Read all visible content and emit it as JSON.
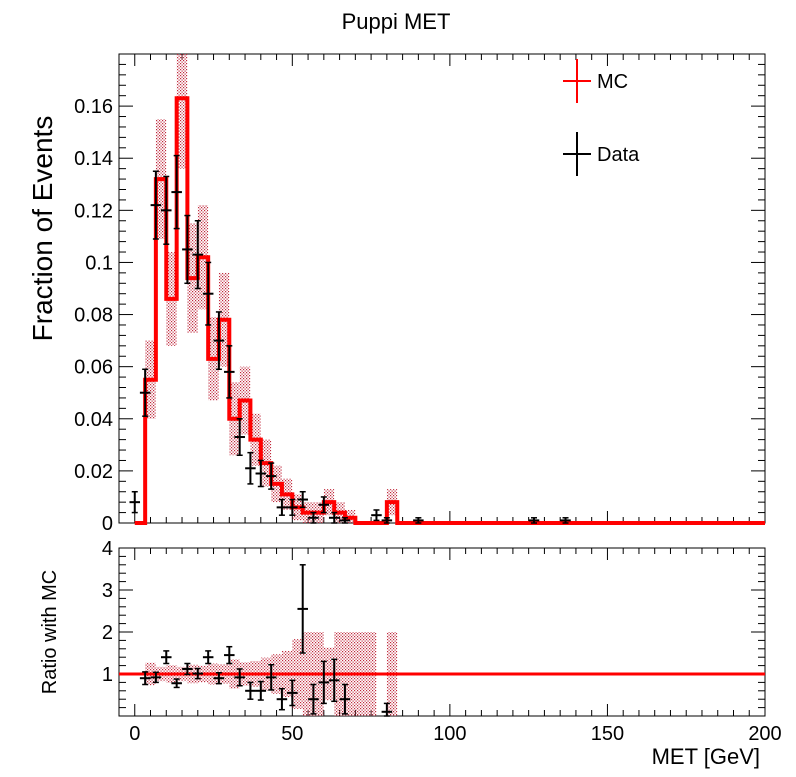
{
  "chart_data": [
    {
      "type": "line",
      "title": "Puppi MET",
      "ylabel": "Fraction of Events",
      "xlim": [
        -5,
        200
      ],
      "ylim": [
        0,
        0.18
      ],
      "y_ticks": [
        0,
        0.02,
        0.04,
        0.06,
        0.08,
        0.1,
        0.12,
        0.14,
        0.16
      ],
      "y_tick_labels": [
        "0",
        "0.02",
        "0.04",
        "0.06",
        "0.08",
        "0.1",
        "0.12",
        "0.14",
        "0.16"
      ],
      "grid": false,
      "legend_position": "top-right",
      "series": [
        {
          "name": "MC",
          "style": "histogram-step",
          "color": "#ff0000",
          "band_color": "#c0283c",
          "bin_edges": [
            0,
            3.3,
            6.7,
            10,
            13.3,
            16.7,
            20,
            23.3,
            26.7,
            30,
            33.3,
            36.7,
            40,
            43.3,
            46.7,
            50,
            53.3,
            56.7,
            60,
            63.3,
            66.7,
            70,
            73.3,
            76.7,
            80,
            83.3,
            200
          ],
          "values": [
            0.0,
            0.055,
            0.132,
            0.086,
            0.163,
            0.094,
            0.102,
            0.063,
            0.078,
            0.04,
            0.047,
            0.032,
            0.023,
            0.015,
            0.011,
            0.006,
            0.004,
            0.004,
            0.008,
            0.004,
            0.002,
            0.0,
            0.0,
            0.0,
            0.008,
            0.0
          ],
          "errors": [
            0.0,
            0.015,
            0.023,
            0.018,
            0.027,
            0.021,
            0.02,
            0.016,
            0.018,
            0.014,
            0.013,
            0.01,
            0.009,
            0.007,
            0.006,
            0.005,
            0.004,
            0.004,
            0.005,
            0.004,
            0.003,
            0.0,
            0.0,
            0.0,
            0.005,
            0.0
          ]
        },
        {
          "name": "Data",
          "style": "points-with-errors",
          "color": "#000000",
          "x": [
            0,
            3.3,
            6.7,
            10,
            13.3,
            16.7,
            20,
            23.3,
            26.7,
            30,
            33.3,
            36.7,
            40,
            43.3,
            46.7,
            50,
            53.3,
            56.7,
            60,
            63.3,
            66.7,
            76.7,
            80,
            90,
            126.7,
            136.7
          ],
          "y": [
            0.008,
            0.05,
            0.122,
            0.12,
            0.127,
            0.105,
            0.103,
            0.088,
            0.07,
            0.058,
            0.033,
            0.021,
            0.019,
            0.018,
            0.006,
            0.006,
            0.009,
            0.002,
            0.007,
            0.002,
            0.001,
            0.003,
            0.001,
            0.001,
            0.001,
            0.001
          ],
          "yerr": [
            0.004,
            0.009,
            0.013,
            0.013,
            0.014,
            0.013,
            0.013,
            0.012,
            0.011,
            0.01,
            0.007,
            0.006,
            0.005,
            0.005,
            0.003,
            0.003,
            0.003,
            0.002,
            0.003,
            0.002,
            0.001,
            0.002,
            0.001,
            0.001,
            0.001,
            0.001
          ],
          "xerr": 1.67
        }
      ]
    },
    {
      "type": "scatter",
      "xlabel": "MET [GeV]",
      "ylabel": "Ratio with MC",
      "xlim": [
        -5,
        200
      ],
      "ylim": [
        0,
        4
      ],
      "x_ticks": [
        0,
        50,
        100,
        150,
        200
      ],
      "x_tick_labels": [
        "0",
        "50",
        "100",
        "150",
        "200"
      ],
      "y_ticks": [
        1,
        2,
        3,
        4
      ],
      "y_tick_labels": [
        "1",
        "2",
        "3",
        "4"
      ],
      "grid": false,
      "reference_line": 1,
      "series": [
        {
          "name": "Data/MC",
          "color": "#000000",
          "x": [
            3.3,
            6.7,
            10,
            13.3,
            16.7,
            20,
            23.3,
            26.7,
            30,
            33.3,
            36.7,
            40,
            43.3,
            46.7,
            50,
            53.3,
            56.7,
            60,
            63.3,
            66.7,
            80
          ],
          "y": [
            0.9,
            0.92,
            1.4,
            0.78,
            1.12,
            1.01,
            1.4,
            0.9,
            1.45,
            0.92,
            0.6,
            0.6,
            0.92,
            0.4,
            0.55,
            2.55,
            0.4,
            0.8,
            0.85,
            0.4,
            0.1
          ],
          "yerr": [
            0.15,
            0.12,
            0.15,
            0.1,
            0.13,
            0.12,
            0.15,
            0.13,
            0.2,
            0.2,
            0.2,
            0.22,
            0.3,
            0.25,
            0.3,
            1.05,
            0.35,
            0.5,
            0.5,
            0.35,
            0.2
          ],
          "xerr": 1.67
        },
        {
          "name": "MC uncertainty",
          "color": "#c0283c",
          "bin_edges": [
            0,
            3.3,
            6.7,
            10,
            13.3,
            16.7,
            20,
            23.3,
            26.7,
            30,
            33.3,
            36.7,
            40,
            43.3,
            46.7,
            50,
            53.3,
            56.7,
            60,
            63.3,
            66.7,
            76.7,
            80,
            83.3
          ],
          "rel_err": [
            0.0,
            0.27,
            0.17,
            0.21,
            0.17,
            0.22,
            0.2,
            0.25,
            0.23,
            0.35,
            0.28,
            0.31,
            0.39,
            0.47,
            0.55,
            0.83,
            1.0,
            1.0,
            0.63,
            1.0,
            1.0,
            0.0,
            1.0,
            0.0
          ]
        }
      ]
    }
  ],
  "legend": {
    "items": [
      {
        "label": "MC",
        "color": "#ff0000"
      },
      {
        "label": "Data",
        "color": "#000000"
      }
    ]
  }
}
